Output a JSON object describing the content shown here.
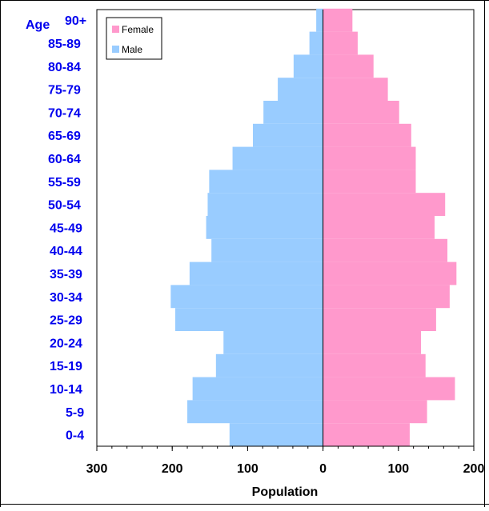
{
  "chart_data": {
    "type": "bar",
    "orientation": "horizontal-pyramid",
    "age_header": "Age",
    "categories": [
      "0-4",
      "5-9",
      "10-14",
      "15-19",
      "20-24",
      "25-29",
      "30-34",
      "35-39",
      "40-44",
      "45-49",
      "50-54",
      "55-59",
      "60-64",
      "65-69",
      "70-74",
      "75-79",
      "80-84",
      "85-89",
      "90+"
    ],
    "series": [
      {
        "name": "Female",
        "color": "#ff99cc",
        "values": [
          115,
          138,
          175,
          136,
          130,
          150,
          168,
          177,
          165,
          148,
          162,
          123,
          123,
          117,
          101,
          86,
          67,
          46,
          39
        ]
      },
      {
        "name": "Male",
        "color": "#99ccff",
        "values": [
          124,
          180,
          173,
          142,
          132,
          196,
          202,
          177,
          148,
          155,
          153,
          151,
          120,
          93,
          79,
          60,
          39,
          18,
          9
        ]
      }
    ],
    "xlabel": "Population",
    "xlim": [
      -300,
      200
    ],
    "xticks": [
      -300,
      -200,
      -100,
      0,
      100,
      200
    ],
    "xtick_labels": [
      "300",
      "200",
      "100",
      "0",
      "100",
      "200"
    ],
    "grid": false,
    "legend_position": "top-left"
  }
}
